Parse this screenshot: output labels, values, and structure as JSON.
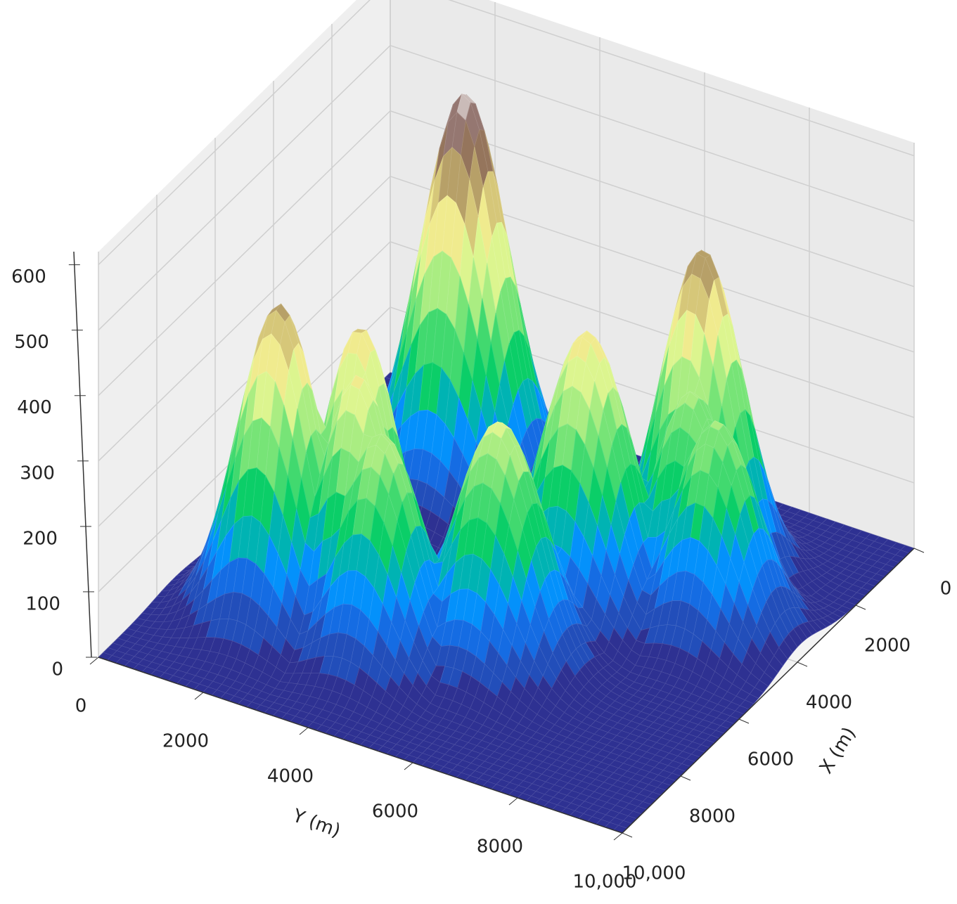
{
  "chart_data": {
    "type": "surface",
    "xlabel": "X (m)",
    "ylabel": "Y (m)",
    "xlim": [
      0,
      10000
    ],
    "ylim": [
      0,
      10000
    ],
    "zlim": [
      0,
      620
    ],
    "xticks": [
      0,
      2000,
      4000,
      6000,
      8000,
      {
        "value": 10000,
        "label": "10,000"
      }
    ],
    "yticks": [
      0,
      2000,
      4000,
      6000,
      8000,
      {
        "value": 10000,
        "label": "10,000"
      }
    ],
    "zticks": [
      0,
      100,
      200,
      300,
      400,
      500,
      600
    ],
    "grid": true,
    "colormap": "terrain",
    "peaks": [
      {
        "x": 2300,
        "y": 2700,
        "z": 600,
        "width": 750
      },
      {
        "x": 7400,
        "y": 2000,
        "z": 480,
        "width": 700
      },
      {
        "x": 6600,
        "y": 3100,
        "z": 440,
        "width": 650
      },
      {
        "x": 7200,
        "y": 3400,
        "z": 400,
        "width": 650
      },
      {
        "x": 7500,
        "y": 4000,
        "z": 340,
        "width": 700
      },
      {
        "x": 6500,
        "y": 5700,
        "z": 360,
        "width": 750
      },
      {
        "x": 4400,
        "y": 6200,
        "z": 420,
        "width": 750
      },
      {
        "x": 2600,
        "y": 7400,
        "z": 500,
        "width": 700
      },
      {
        "x": 3500,
        "y": 7700,
        "z": 330,
        "width": 650
      },
      {
        "x": 3900,
        "y": 8400,
        "z": 320,
        "width": 700
      }
    ]
  }
}
